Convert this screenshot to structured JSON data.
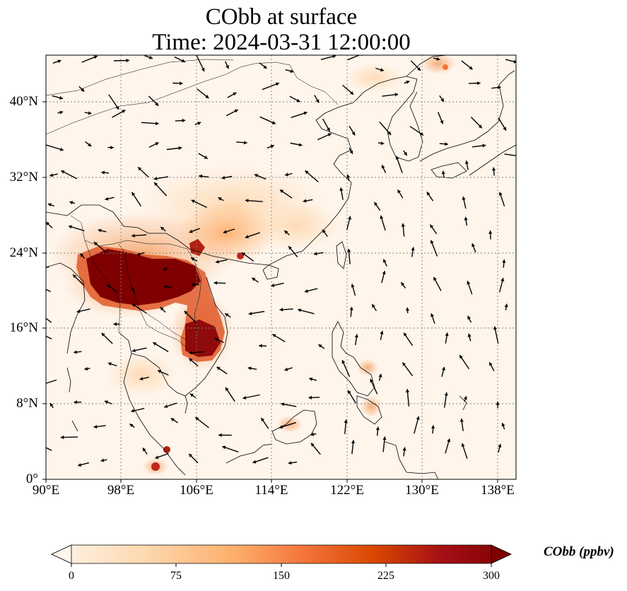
{
  "title_line1": "CObb at surface",
  "title_line2": "Time: 2024-03-31 12:00:00",
  "lat_labels": [
    "40°N",
    "32°N",
    "24°N",
    "16°N",
    "8°N",
    "0°"
  ],
  "lon_labels": [
    "90°E",
    "98°E",
    "106°E",
    "114°E",
    "122°E",
    "130°E",
    "138°E"
  ],
  "colorbar": {
    "label": "CObb (ppbv)",
    "ticks": [
      "0",
      "75",
      "150",
      "225",
      "300"
    ],
    "min": 0,
    "max": 300,
    "colors": [
      "#fff5eb",
      "#fdd9b1",
      "#fdae6b",
      "#f4743a",
      "#d94801",
      "#a50f15",
      "#7f0000"
    ]
  },
  "map": {
    "lon_range": [
      90,
      140
    ],
    "lat_range": [
      0,
      45
    ],
    "gridlines": true
  }
}
